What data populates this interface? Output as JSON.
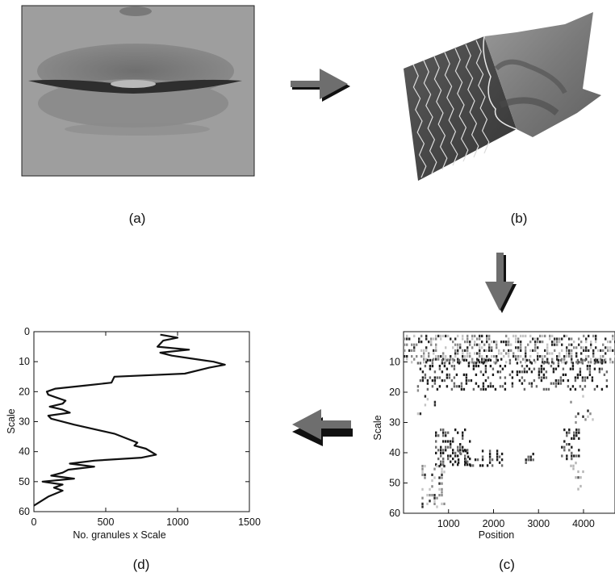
{
  "panels": {
    "a": {
      "label": "(a)"
    },
    "b": {
      "label": "(b)"
    },
    "c": {
      "label": "(c)"
    },
    "d": {
      "label": "(d)"
    }
  },
  "colors": {
    "arrow_fill": "#6e6e6e",
    "arrow_shadow": "#111111",
    "line": "#111111",
    "surface_dark": "#4a4a4a",
    "surface_light": "#8a8a8a",
    "photo_gray": "#9d9d9d"
  },
  "chart_data": [
    {
      "panel": "d",
      "type": "line",
      "title": "",
      "xlabel": "No. granules x Scale",
      "ylabel": "Scale",
      "xlim": [
        0,
        1500
      ],
      "ylim": [
        60,
        0
      ],
      "x_ticks": [
        0,
        500,
        1000,
        1500
      ],
      "y_ticks": [
        0,
        10,
        20,
        30,
        40,
        50,
        60
      ],
      "grid": false,
      "series": [
        {
          "x": [
            880,
            1000,
            900,
            860,
            1080,
            880,
            960,
            1100,
            1250,
            1330,
            1220,
            1050,
            560,
            540,
            350,
            150,
            90,
            100,
            160,
            220,
            200,
            110,
            200,
            250,
            100,
            120,
            280,
            560,
            720,
            700,
            780,
            850,
            750,
            420,
            250,
            420,
            240,
            200,
            120,
            280,
            60,
            200,
            140,
            200,
            100,
            0
          ],
          "y": [
            1,
            2,
            3,
            5,
            6,
            7,
            8,
            9,
            10,
            11,
            12,
            14,
            15,
            17,
            18,
            19,
            20,
            21,
            22,
            23,
            24,
            25,
            26,
            27,
            28,
            29,
            31,
            34,
            37,
            38,
            39,
            41,
            42,
            43,
            44,
            45,
            46,
            47,
            48,
            49,
            50,
            51,
            52,
            53,
            55,
            58
          ]
        }
      ]
    },
    {
      "panel": "c",
      "type": "heatmap",
      "title": "",
      "xlabel": "Position",
      "ylabel": "Scale",
      "xlim": [
        0,
        4700
      ],
      "ylim": [
        60,
        0
      ],
      "x_ticks": [
        1000,
        2000,
        3000,
        4000
      ],
      "y_ticks": [
        10,
        20,
        30,
        40,
        50,
        60
      ],
      "grid": false,
      "clusters": [
        {
          "x": [
            0,
            4700
          ],
          "y": [
            1,
            10
          ],
          "density": 0.45,
          "shade": "mixed"
        },
        {
          "x": [
            300,
            4500
          ],
          "y": [
            9,
            19
          ],
          "density": 0.3,
          "shade": "dark"
        },
        {
          "x": [
            300,
            700
          ],
          "y": [
            19,
            27
          ],
          "density": 0.08,
          "shade": "mixed"
        },
        {
          "x": [
            3700,
            4200
          ],
          "y": [
            19,
            33
          ],
          "density": 0.08,
          "shade": "mixed"
        },
        {
          "x": [
            700,
            1500
          ],
          "y": [
            32,
            44
          ],
          "density": 0.35,
          "shade": "dark"
        },
        {
          "x": [
            1200,
            2200
          ],
          "y": [
            39,
            44
          ],
          "density": 0.35,
          "shade": "dark"
        },
        {
          "x": [
            3500,
            3900
          ],
          "y": [
            32,
            42
          ],
          "density": 0.3,
          "shade": "dark"
        },
        {
          "x": [
            3700,
            4000
          ],
          "y": [
            42,
            52
          ],
          "density": 0.2,
          "shade": "light"
        },
        {
          "x": [
            400,
            900
          ],
          "y": [
            44,
            58
          ],
          "density": 0.3,
          "shade": "mixed"
        },
        {
          "x": [
            2700,
            2900
          ],
          "y": [
            40,
            43
          ],
          "density": 0.4,
          "shade": "dark"
        }
      ]
    }
  ]
}
